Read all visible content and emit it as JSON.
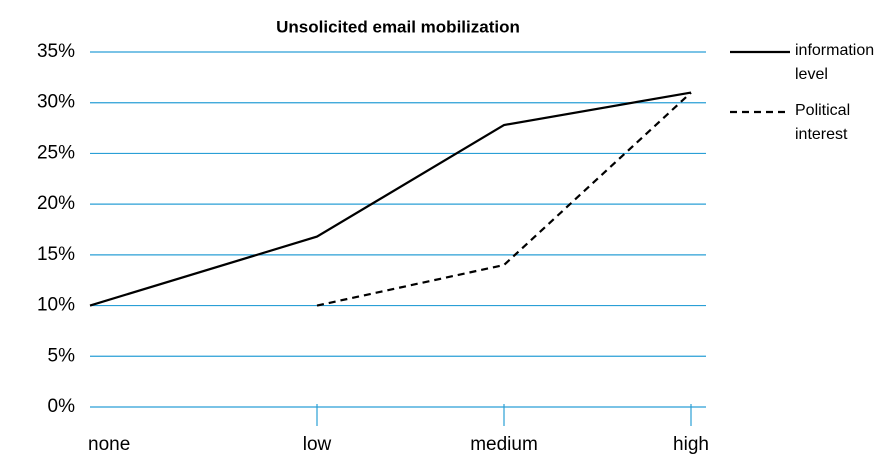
{
  "chart_data": {
    "type": "line",
    "title": "Unsolicited email mobilization",
    "categories": [
      "none",
      "low",
      "medium",
      "high"
    ],
    "series": [
      {
        "name": "information level",
        "color": "#000000",
        "dash": false,
        "values": [
          10,
          16.8,
          27.8,
          31
        ]
      },
      {
        "name": "Political interest",
        "color": "#000000",
        "dash": true,
        "values": [
          null,
          10,
          14,
          31
        ]
      }
    ],
    "ylim": [
      0,
      35
    ],
    "yticks": [
      {
        "value": 0,
        "label": "0%"
      },
      {
        "value": 5,
        "label": "5%"
      },
      {
        "value": 10,
        "label": "10%"
      },
      {
        "value": 15,
        "label": "15%"
      },
      {
        "value": 20,
        "label": "20%"
      },
      {
        "value": 25,
        "label": "25%"
      },
      {
        "value": 30,
        "label": "30%"
      },
      {
        "value": 35,
        "label": "35%"
      }
    ],
    "grid": true,
    "grid_color": "#2a9fd6",
    "legend": "right"
  }
}
